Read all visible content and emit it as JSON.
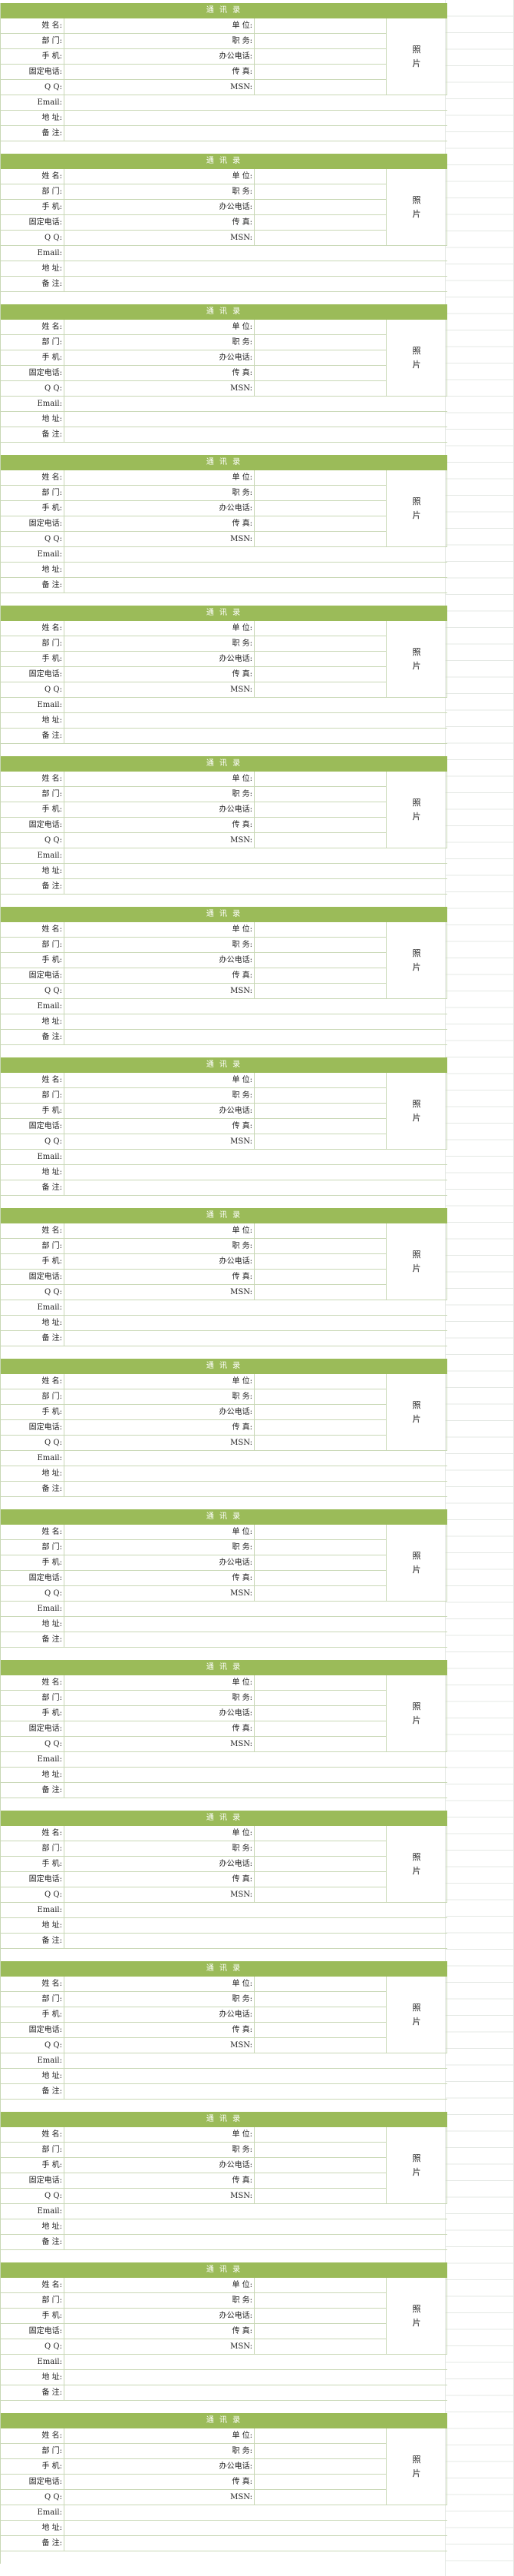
{
  "colors": {
    "header_fill": "#9bbb59",
    "border": "#c9d8b6",
    "grid": "#e4e8e4"
  },
  "card": {
    "title": "通 讯 录",
    "name": "姓  名:",
    "dept": "部  门:",
    "mobile": "手  机:",
    "landline": "固定电话:",
    "qq": "Q Q:",
    "email": "Email:",
    "address": "地  址:",
    "remark": "备  注:",
    "company": "单  位:",
    "position": "职  务:",
    "office_phone": "办公电话:",
    "fax": "传  真:",
    "msn": "MSN:",
    "photo": "照片"
  },
  "cards": [
    {
      "fields": {
        "name": "",
        "dept": "",
        "mobile": "",
        "landline": "",
        "qq": "",
        "company": "",
        "position": "",
        "office_phone": "",
        "fax": "",
        "msn": "",
        "email": "",
        "address": "",
        "remark": ""
      }
    },
    {
      "fields": {
        "name": "",
        "dept": "",
        "mobile": "",
        "landline": "",
        "qq": "",
        "company": "",
        "position": "",
        "office_phone": "",
        "fax": "",
        "msn": "",
        "email": "",
        "address": "",
        "remark": ""
      }
    },
    {
      "fields": {
        "name": "",
        "dept": "",
        "mobile": "",
        "landline": "",
        "qq": "",
        "company": "",
        "position": "",
        "office_phone": "",
        "fax": "",
        "msn": "",
        "email": "",
        "address": "",
        "remark": ""
      }
    },
    {
      "fields": {
        "name": "",
        "dept": "",
        "mobile": "",
        "landline": "",
        "qq": "",
        "company": "",
        "position": "",
        "office_phone": "",
        "fax": "",
        "msn": "",
        "email": "",
        "address": "",
        "remark": ""
      }
    },
    {
      "fields": {
        "name": "",
        "dept": "",
        "mobile": "",
        "landline": "",
        "qq": "",
        "company": "",
        "position": "",
        "office_phone": "",
        "fax": "",
        "msn": "",
        "email": "",
        "address": "",
        "remark": ""
      }
    },
    {
      "fields": {
        "name": "",
        "dept": "",
        "mobile": "",
        "landline": "",
        "qq": "",
        "company": "",
        "position": "",
        "office_phone": "",
        "fax": "",
        "msn": "",
        "email": "",
        "address": "",
        "remark": ""
      }
    },
    {
      "fields": {
        "name": "",
        "dept": "",
        "mobile": "",
        "landline": "",
        "qq": "",
        "company": "",
        "position": "",
        "office_phone": "",
        "fax": "",
        "msn": "",
        "email": "",
        "address": "",
        "remark": ""
      }
    },
    {
      "fields": {
        "name": "",
        "dept": "",
        "mobile": "",
        "landline": "",
        "qq": "",
        "company": "",
        "position": "",
        "office_phone": "",
        "fax": "",
        "msn": "",
        "email": "",
        "address": "",
        "remark": ""
      }
    },
    {
      "fields": {
        "name": "",
        "dept": "",
        "mobile": "",
        "landline": "",
        "qq": "",
        "company": "",
        "position": "",
        "office_phone": "",
        "fax": "",
        "msn": "",
        "email": "",
        "address": "",
        "remark": ""
      }
    },
    {
      "fields": {
        "name": "",
        "dept": "",
        "mobile": "",
        "landline": "",
        "qq": "",
        "company": "",
        "position": "",
        "office_phone": "",
        "fax": "",
        "msn": "",
        "email": "",
        "address": "",
        "remark": ""
      }
    },
    {
      "fields": {
        "name": "",
        "dept": "",
        "mobile": "",
        "landline": "",
        "qq": "",
        "company": "",
        "position": "",
        "office_phone": "",
        "fax": "",
        "msn": "",
        "email": "",
        "address": "",
        "remark": ""
      }
    },
    {
      "fields": {
        "name": "",
        "dept": "",
        "mobile": "",
        "landline": "",
        "qq": "",
        "company": "",
        "position": "",
        "office_phone": "",
        "fax": "",
        "msn": "",
        "email": "",
        "address": "",
        "remark": ""
      }
    },
    {
      "fields": {
        "name": "",
        "dept": "",
        "mobile": "",
        "landline": "",
        "qq": "",
        "company": "",
        "position": "",
        "office_phone": "",
        "fax": "",
        "msn": "",
        "email": "",
        "address": "",
        "remark": ""
      }
    },
    {
      "fields": {
        "name": "",
        "dept": "",
        "mobile": "",
        "landline": "",
        "qq": "",
        "company": "",
        "position": "",
        "office_phone": "",
        "fax": "",
        "msn": "",
        "email": "",
        "address": "",
        "remark": ""
      }
    },
    {
      "fields": {
        "name": "",
        "dept": "",
        "mobile": "",
        "landline": "",
        "qq": "",
        "company": "",
        "position": "",
        "office_phone": "",
        "fax": "",
        "msn": "",
        "email": "",
        "address": "",
        "remark": ""
      }
    },
    {
      "fields": {
        "name": "",
        "dept": "",
        "mobile": "",
        "landline": "",
        "qq": "",
        "company": "",
        "position": "",
        "office_phone": "",
        "fax": "",
        "msn": "",
        "email": "",
        "address": "",
        "remark": ""
      }
    },
    {
      "fields": {
        "name": "",
        "dept": "",
        "mobile": "",
        "landline": "",
        "qq": "",
        "company": "",
        "position": "",
        "office_phone": "",
        "fax": "",
        "msn": "",
        "email": "",
        "address": "",
        "remark": ""
      }
    }
  ]
}
